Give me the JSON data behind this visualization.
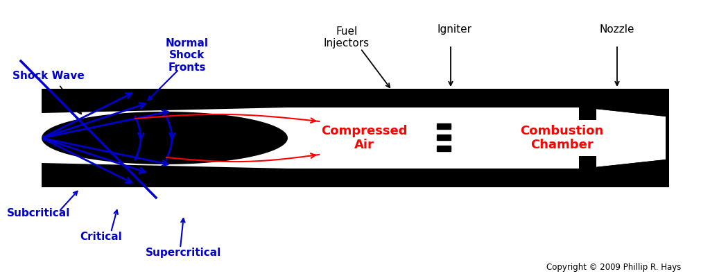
{
  "bg_color": "#ffffff",
  "black": "#000000",
  "blue": "#0000cc",
  "red": "#ff0000",
  "fig_width": 10.24,
  "fig_height": 3.98,
  "labels": {
    "shock_wave": "Shock Wave",
    "normal_shock": "Normal\nShock\nFronts",
    "fuel_injectors": "Fuel\nInjectors",
    "igniter": "Igniter",
    "nozzle": "Nozzle",
    "subcritical": "Subcritical",
    "critical": "Critical",
    "supercritical": "Supercritical",
    "compressed_air": "Compressed\nAir",
    "combustion_chamber": "Combustion\nChamber",
    "copyright": "Copyright © 2009 Phillip R. Hays"
  }
}
